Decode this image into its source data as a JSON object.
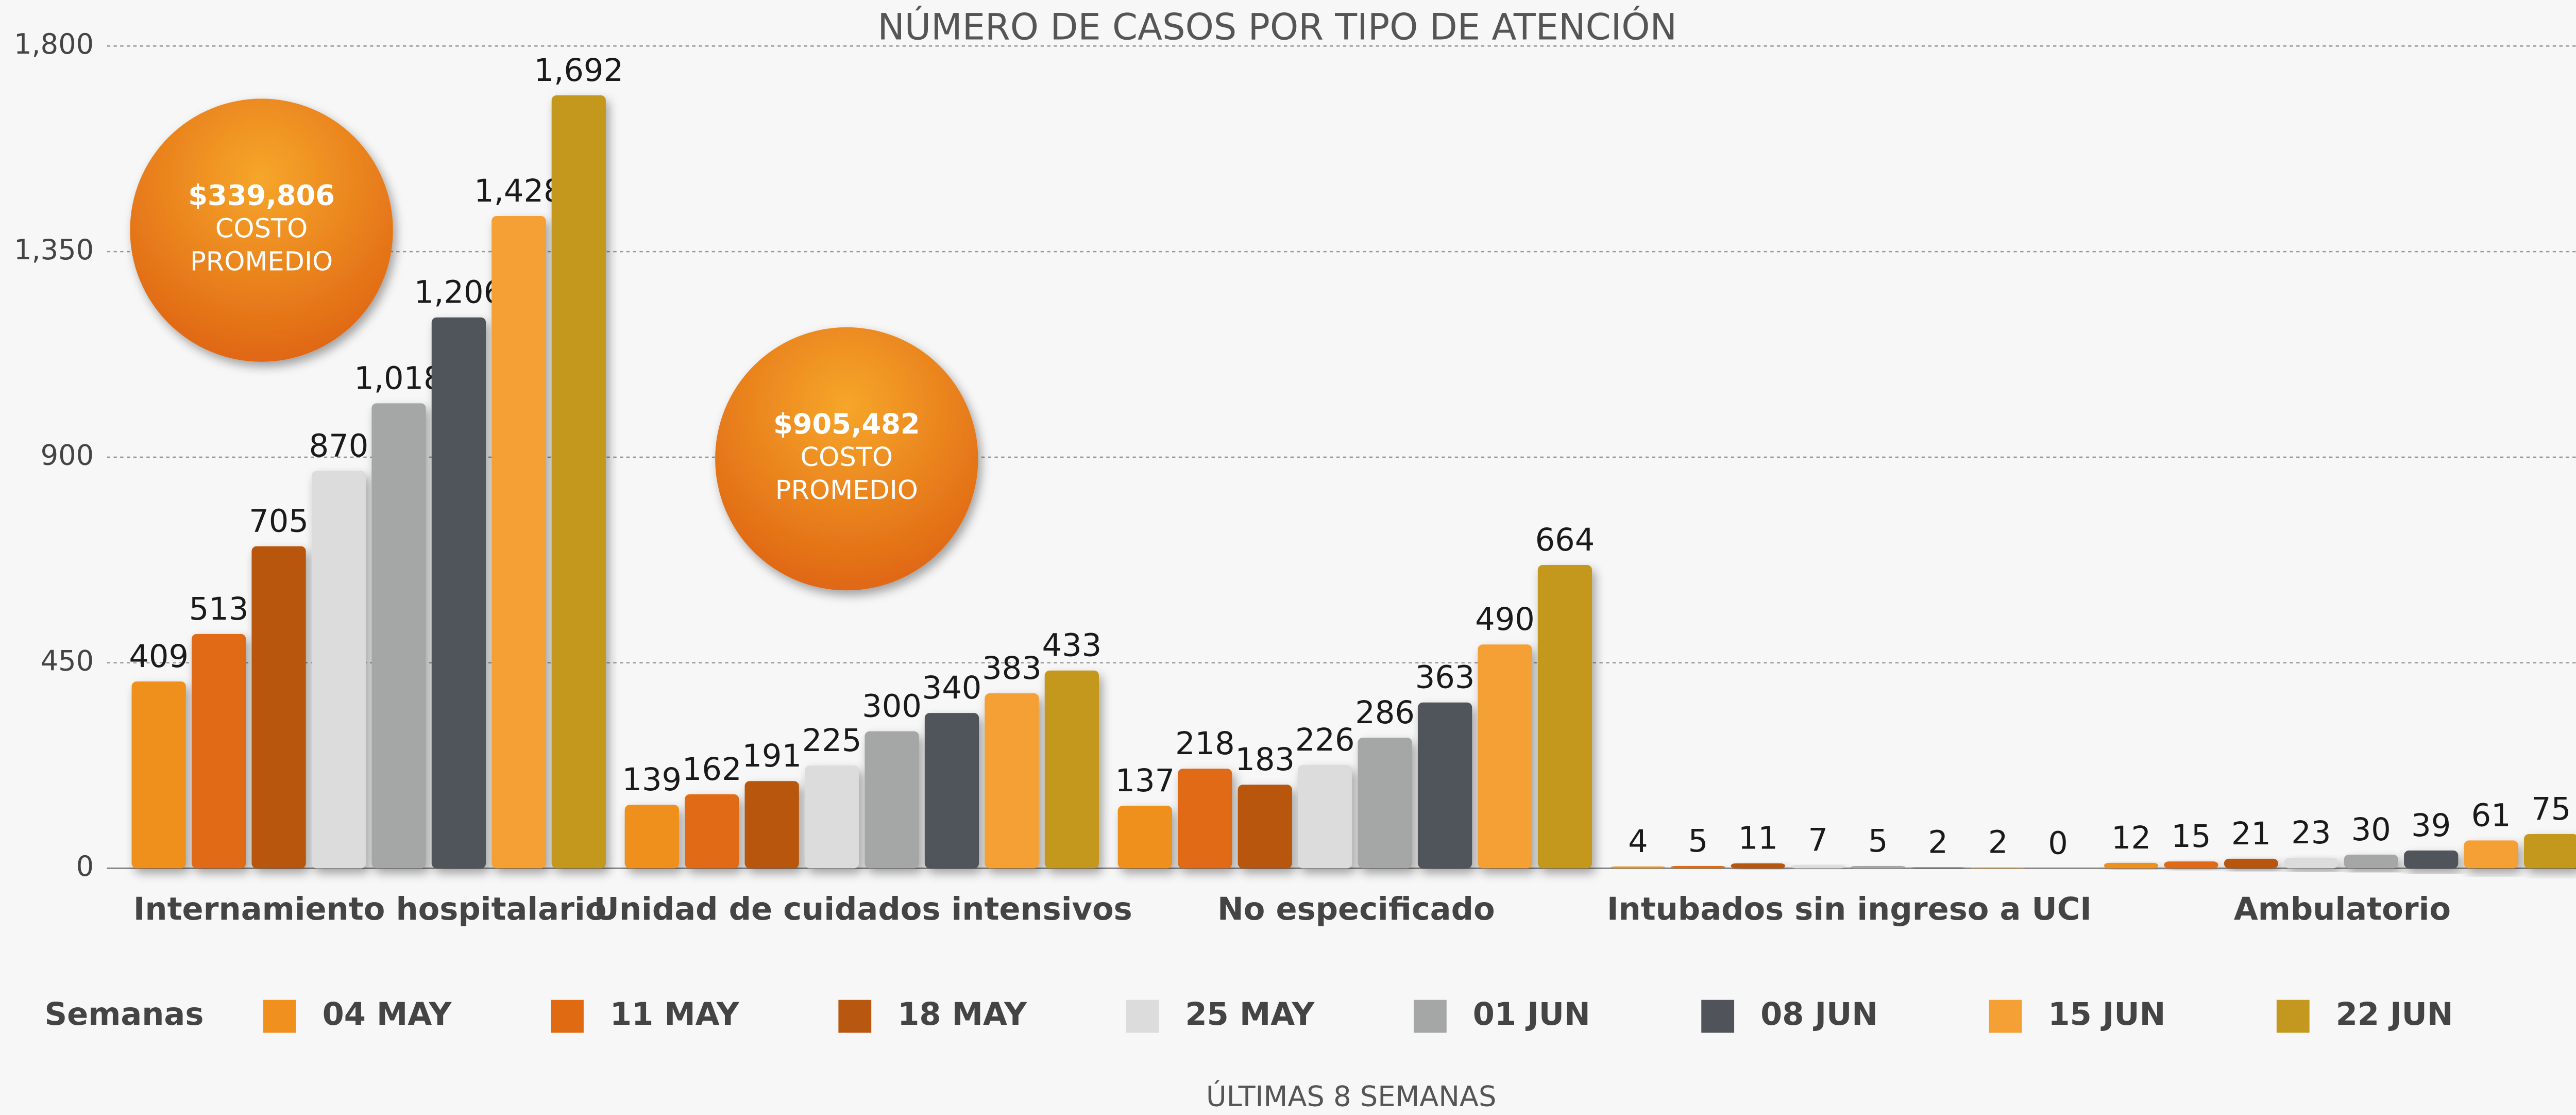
{
  "chart_data": {
    "type": "bar",
    "title": "NÚMERO DE CASOS POR TIPO DE ATENCIÓN",
    "x_label": "ÚLTIMAS 8 SEMANAS",
    "legend_title": "Semanas",
    "categories": [
      "Internamiento hospitalario",
      "Unidad de cuidados intensivos",
      "No especificado",
      "Intubados sin ingreso a UCI",
      "Ambulatorio"
    ],
    "series": [
      {
        "name": "04 MAY",
        "color": "#f0901e",
        "values": [
          409,
          139,
          137,
          4,
          12
        ],
        "value_labels": [
          "409",
          "139",
          "137",
          "4",
          "12"
        ]
      },
      {
        "name": "11 MAY",
        "color": "#e06a12",
        "values": [
          513,
          162,
          218,
          5,
          15
        ],
        "value_labels": [
          "513",
          "162",
          "218",
          "5",
          "15"
        ]
      },
      {
        "name": "18 MAY",
        "color": "#b85710",
        "values": [
          705,
          191,
          183,
          11,
          21
        ],
        "value_labels": [
          "705",
          "191",
          "183",
          "11",
          "21"
        ]
      },
      {
        "name": "25 MAY",
        "color": "#dcdcdd",
        "values": [
          870,
          225,
          226,
          7,
          23
        ],
        "value_labels": [
          "870",
          "225",
          "226",
          "7",
          "23"
        ]
      },
      {
        "name": "01 JUN",
        "color": "#a5a7a6",
        "values": [
          1018,
          300,
          286,
          5,
          30
        ],
        "value_labels": [
          "1,018",
          "300",
          "286",
          "5",
          "30"
        ]
      },
      {
        "name": "08 JUN",
        "color": "#50545a",
        "values": [
          1206,
          340,
          363,
          2,
          39
        ],
        "value_labels": [
          "1,206",
          "340",
          "363",
          "2",
          "39"
        ]
      },
      {
        "name": "15 JUN",
        "color": "#f5a035",
        "values": [
          1428,
          383,
          490,
          2,
          61
        ],
        "value_labels": [
          "1,428",
          "383",
          "490",
          "2",
          "61"
        ]
      },
      {
        "name": "22 JUN",
        "color": "#c4981f",
        "values": [
          1692,
          433,
          664,
          0,
          75
        ],
        "value_labels": [
          "1,692",
          "433",
          "664",
          "0",
          "75"
        ]
      }
    ],
    "ylim": [
      0,
      1800
    ],
    "yticks": [
      0,
      450,
      900,
      {
        "value": 1350,
        "label": "1,350"
      },
      {
        "value": 1800,
        "label": "1,800"
      }
    ],
    "grid": true,
    "legend_position": "bottom",
    "annotations": [
      {
        "amount": "$339,806",
        "lines": [
          "COSTO",
          "PROMEDIO"
        ]
      },
      {
        "amount": "$905,482",
        "lines": [
          "COSTO",
          "PROMEDIO"
        ]
      }
    ]
  }
}
